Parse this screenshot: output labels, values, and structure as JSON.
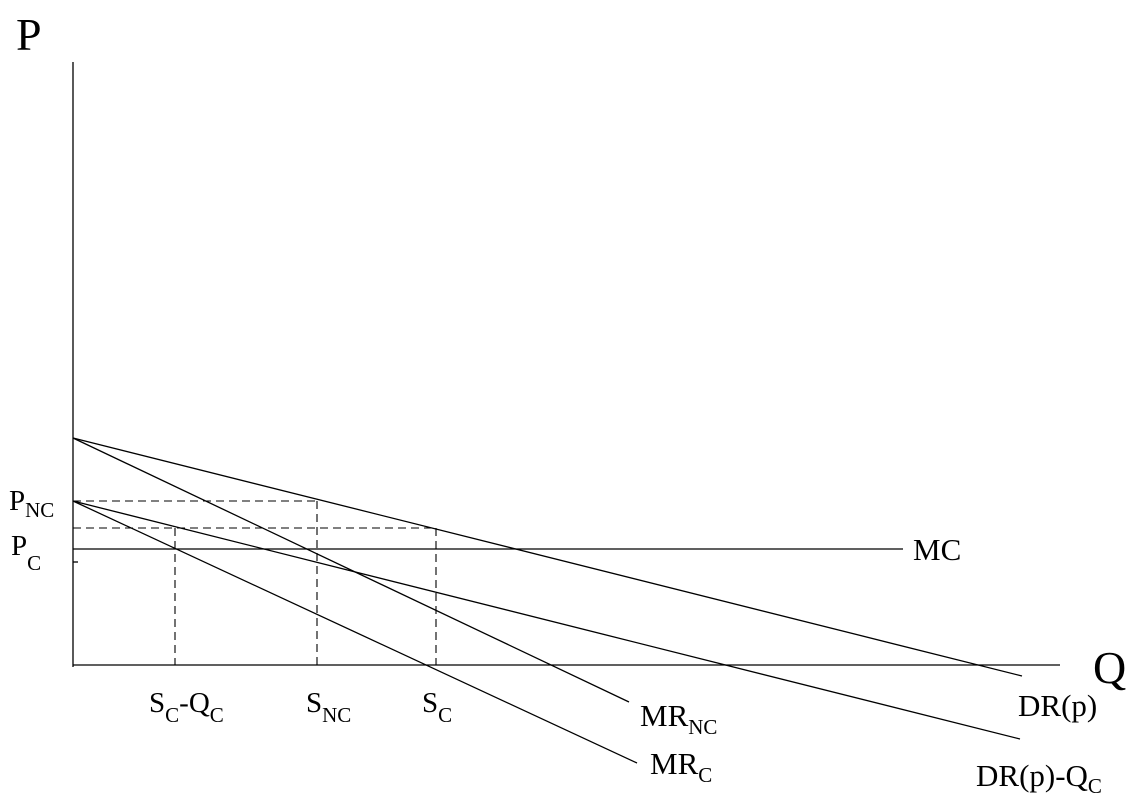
{
  "axes": {
    "y_label": "P",
    "x_label": "Q"
  },
  "price_labels": {
    "p_nc": {
      "main": "P",
      "sub": "NC"
    },
    "p_c": {
      "main": "P",
      "sub": "C"
    }
  },
  "quantity_labels": {
    "s_c_minus_q_c": {
      "a": "S",
      "a_sub": "C",
      "mid": "-Q",
      "b_sub": "C"
    },
    "s_nc": {
      "main": "S",
      "sub": "NC"
    },
    "s_c": {
      "main": "S",
      "sub": "C"
    }
  },
  "curve_labels": {
    "mc": {
      "main": "MC"
    },
    "mr_nc": {
      "main": "MR",
      "sub": "NC"
    },
    "mr_c": {
      "main": "MR",
      "sub": "C"
    },
    "dr_p": {
      "main": "DR(p)"
    },
    "dr_p_minus_q_c": {
      "main": "DR(p)-Q",
      "sub": "C"
    }
  }
}
